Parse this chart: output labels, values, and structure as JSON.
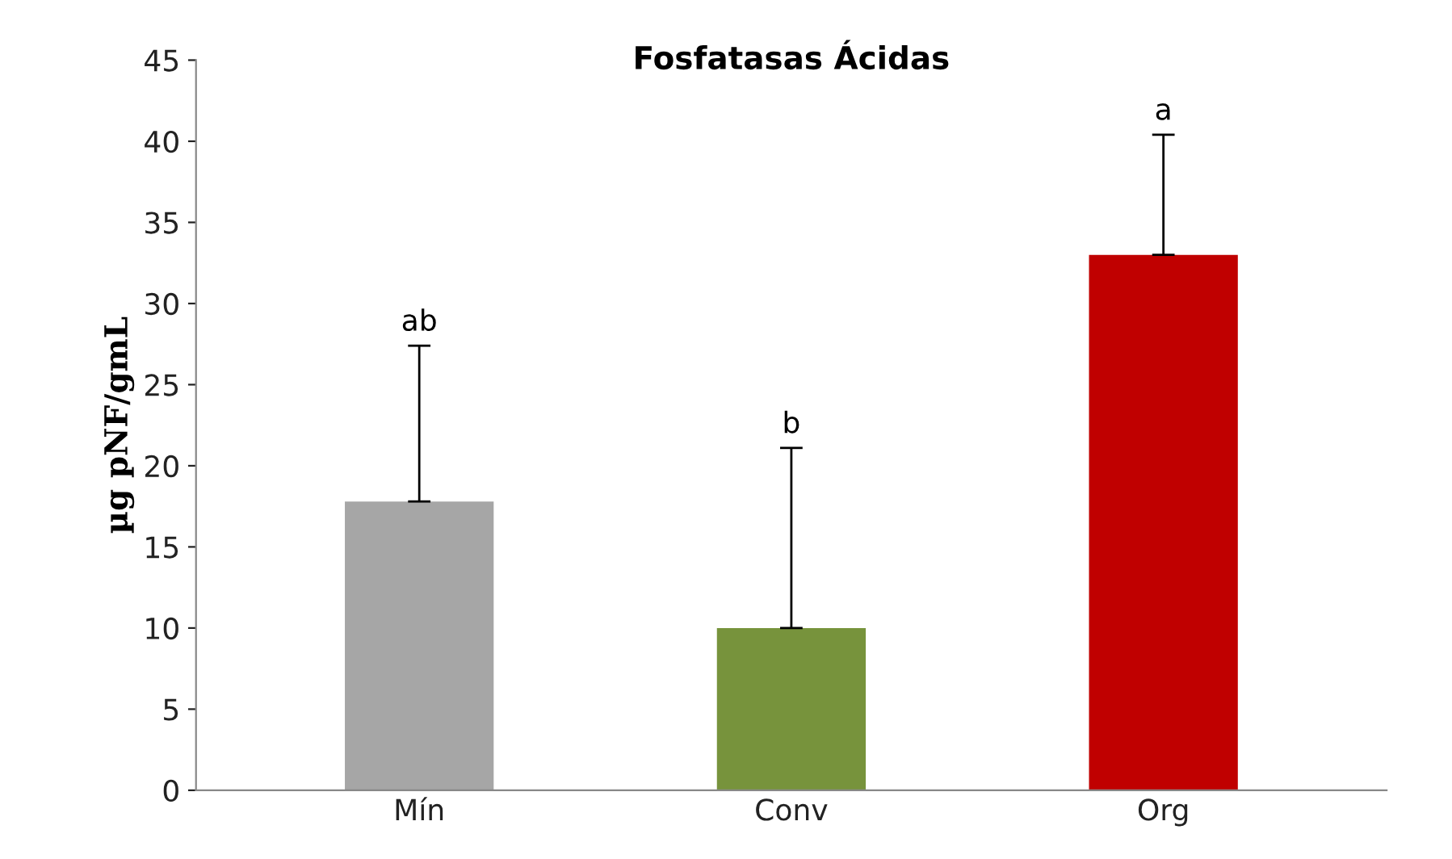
{
  "chart_data": {
    "type": "bar",
    "title": "Fosfatasas Ácidas",
    "ylabel": "µg pNF/gmL",
    "categories": [
      "Mín",
      "Conv",
      "Org"
    ],
    "values": [
      17.8,
      10.0,
      33.0
    ],
    "colors": [
      "#a6a6a6",
      "#77933c",
      "#c00000"
    ],
    "errors": [
      [
        17.8,
        27.4
      ],
      [
        10.0,
        21.1
      ],
      [
        33.0,
        40.4
      ]
    ],
    "ylim": [
      0,
      45
    ],
    "yticks": [
      0,
      5,
      10,
      15,
      20,
      25,
      30,
      35,
      40,
      45
    ],
    "grid": false,
    "legend": false,
    "annotations": [
      "ab",
      "b",
      "a"
    ]
  }
}
